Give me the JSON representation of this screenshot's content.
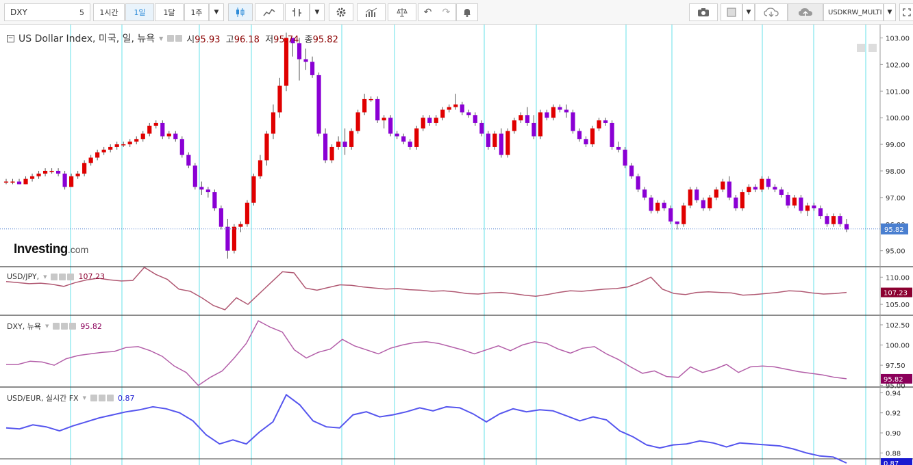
{
  "toolbar": {
    "symbol": "DXY",
    "interval_value": "5",
    "intervals": [
      "1시간",
      "1일",
      "1달",
      "1주"
    ],
    "active_interval": "1일",
    "compare_symbol": "USDKRW_MULTI",
    "icons": [
      "candle-icon",
      "area-icon",
      "indicator-icon",
      "gear-icon",
      "bar-chart-icon",
      "scale-icon",
      "undo-icon",
      "redo-icon",
      "alert-icon",
      "camera-icon",
      "square-icon",
      "cloud-download-icon",
      "cloud-upload-icon",
      "fullscreen-icon"
    ]
  },
  "main_pane": {
    "title": "US Dollar Index, 미국, 일, 뉴욕",
    "open_label": "시",
    "open": "95.93",
    "high_label": "고",
    "high": "96.18",
    "low_label": "저",
    "low": "95.74",
    "close_label": "종",
    "close": "95.82",
    "price_tag": "95.82",
    "y_ticks": [
      "103.00",
      "102.00",
      "101.00",
      "100.00",
      "99.00",
      "98.00",
      "97.00",
      "96.00",
      "95.00"
    ],
    "logo_main": "Investing",
    "logo_suffix": ".com"
  },
  "panes": [
    {
      "label": "USD/JPY,",
      "value": "107.23",
      "value_color": "#8b0030",
      "line_color": "#b05872",
      "y_ticks": [
        "110.00",
        "105.00"
      ],
      "tag": "107.23",
      "tag_color": "#8b0030"
    },
    {
      "label": "DXY, 뉴욕",
      "value": "95.82",
      "value_color": "#8b005a",
      "line_color": "#b35ea8",
      "y_ticks": [
        "102.50",
        "100.00",
        "97.50",
        "95.00"
      ],
      "tag": "95.82",
      "tag_color": "#8b005a"
    },
    {
      "label": "USD/EUR, 실시간 FX",
      "value": "0.87",
      "value_color": "#1a1ad0",
      "line_color": "#5555ee",
      "y_ticks": [
        "0.94",
        "0.92",
        "0.90",
        "0.88"
      ],
      "tag": "0.87",
      "tag_color": "#1a1ad0"
    }
  ],
  "chart_data": {
    "type": "candlestick",
    "series_name": "US Dollar Index",
    "ylim": [
      94.4,
      103.5
    ],
    "up_color": "#e00000",
    "down_color": "#8a00d4",
    "candles": [
      [
        97.6,
        97.7,
        97.5,
        97.6
      ],
      [
        97.6,
        97.7,
        97.5,
        97.6
      ],
      [
        97.6,
        97.7,
        97.5,
        97.5
      ],
      [
        97.5,
        97.8,
        97.5,
        97.7
      ],
      [
        97.7,
        97.9,
        97.6,
        97.8
      ],
      [
        97.8,
        98.0,
        97.7,
        97.9
      ],
      [
        97.9,
        98.1,
        97.8,
        98.0
      ],
      [
        98.0,
        98.1,
        97.9,
        98.0
      ],
      [
        98.0,
        98.1,
        97.8,
        97.9
      ],
      [
        97.9,
        98.0,
        97.3,
        97.4
      ],
      [
        97.4,
        97.9,
        97.4,
        97.8
      ],
      [
        97.8,
        98.0,
        97.7,
        97.9
      ],
      [
        97.9,
        98.4,
        97.8,
        98.3
      ],
      [
        98.3,
        98.6,
        98.2,
        98.5
      ],
      [
        98.5,
        98.8,
        98.4,
        98.7
      ],
      [
        98.7,
        98.9,
        98.6,
        98.8
      ],
      [
        98.8,
        99.0,
        98.7,
        98.9
      ],
      [
        98.9,
        99.1,
        98.8,
        99.0
      ],
      [
        99.0,
        99.1,
        98.9,
        99.0
      ],
      [
        99.0,
        99.2,
        98.9,
        99.1
      ],
      [
        99.1,
        99.3,
        99.0,
        99.2
      ],
      [
        99.2,
        99.5,
        99.1,
        99.4
      ],
      [
        99.4,
        99.8,
        99.3,
        99.7
      ],
      [
        99.7,
        99.9,
        99.6,
        99.8
      ],
      [
        99.8,
        99.9,
        99.2,
        99.3
      ],
      [
        99.3,
        99.5,
        99.2,
        99.4
      ],
      [
        99.4,
        99.5,
        99.1,
        99.2
      ],
      [
        99.2,
        99.3,
        98.5,
        98.6
      ],
      [
        98.6,
        98.7,
        98.1,
        98.2
      ],
      [
        98.2,
        98.3,
        97.3,
        97.4
      ],
      [
        97.4,
        97.6,
        97.1,
        97.3
      ],
      [
        97.3,
        97.4,
        97.0,
        97.2
      ],
      [
        97.2,
        97.3,
        96.5,
        96.6
      ],
      [
        96.6,
        96.7,
        95.8,
        95.9
      ],
      [
        95.9,
        96.2,
        94.7,
        95.0
      ],
      [
        95.0,
        96.0,
        94.9,
        95.9
      ],
      [
        95.9,
        96.1,
        95.7,
        96.0
      ],
      [
        96.0,
        96.9,
        95.9,
        96.8
      ],
      [
        96.8,
        97.9,
        96.7,
        97.8
      ],
      [
        97.8,
        98.6,
        97.7,
        98.4
      ],
      [
        98.4,
        99.5,
        98.2,
        99.4
      ],
      [
        99.4,
        100.5,
        99.2,
        100.2
      ],
      [
        100.2,
        101.5,
        100.0,
        101.2
      ],
      [
        101.2,
        103.2,
        101.0,
        103.0
      ],
      [
        103.0,
        103.0,
        102.3,
        102.8
      ],
      [
        102.8,
        103.0,
        101.4,
        102.2
      ],
      [
        102.2,
        102.6,
        101.8,
        102.1
      ],
      [
        102.1,
        102.3,
        101.5,
        101.6
      ],
      [
        101.6,
        101.7,
        99.3,
        99.4
      ],
      [
        99.4,
        99.6,
        98.3,
        98.4
      ],
      [
        98.4,
        99.0,
        98.3,
        98.9
      ],
      [
        98.9,
        99.3,
        98.8,
        99.1
      ],
      [
        99.1,
        99.6,
        98.6,
        98.9
      ],
      [
        98.9,
        99.6,
        98.8,
        99.5
      ],
      [
        99.5,
        100.3,
        99.4,
        100.2
      ],
      [
        100.2,
        100.9,
        100.1,
        100.7
      ],
      [
        100.7,
        100.8,
        100.6,
        100.7
      ],
      [
        100.7,
        100.8,
        99.8,
        99.9
      ],
      [
        99.9,
        100.1,
        99.6,
        100.0
      ],
      [
        100.0,
        100.1,
        99.3,
        99.4
      ],
      [
        99.4,
        99.5,
        99.2,
        99.3
      ],
      [
        99.3,
        99.4,
        99.0,
        99.1
      ],
      [
        99.1,
        99.2,
        98.8,
        98.9
      ],
      [
        98.9,
        99.7,
        98.8,
        99.6
      ],
      [
        99.6,
        100.1,
        99.5,
        100.0
      ],
      [
        100.0,
        100.1,
        99.7,
        99.8
      ],
      [
        99.8,
        100.1,
        99.7,
        100.0
      ],
      [
        100.0,
        100.4,
        99.9,
        100.3
      ],
      [
        100.3,
        100.5,
        100.2,
        100.4
      ],
      [
        100.4,
        100.9,
        100.3,
        100.5
      ],
      [
        100.5,
        100.6,
        100.1,
        100.2
      ],
      [
        100.2,
        100.3,
        100.0,
        100.1
      ],
      [
        100.1,
        100.2,
        99.7,
        99.8
      ],
      [
        99.8,
        99.9,
        99.3,
        99.4
      ],
      [
        99.4,
        99.5,
        98.8,
        98.9
      ],
      [
        98.9,
        99.5,
        98.8,
        99.4
      ],
      [
        99.4,
        99.6,
        98.5,
        98.6
      ],
      [
        98.6,
        99.6,
        98.5,
        99.5
      ],
      [
        99.5,
        100.0,
        99.4,
        99.9
      ],
      [
        99.9,
        100.2,
        99.8,
        100.1
      ],
      [
        100.1,
        100.4,
        99.7,
        99.8
      ],
      [
        99.8,
        100.1,
        99.2,
        99.3
      ],
      [
        99.3,
        100.3,
        99.2,
        100.2
      ],
      [
        100.2,
        100.3,
        99.9,
        100.0
      ],
      [
        100.0,
        100.5,
        99.9,
        100.4
      ],
      [
        100.4,
        100.5,
        100.2,
        100.3
      ],
      [
        100.3,
        100.5,
        100.0,
        100.2
      ],
      [
        100.2,
        100.3,
        99.4,
        99.5
      ],
      [
        99.5,
        99.6,
        99.1,
        99.2
      ],
      [
        99.2,
        99.3,
        98.9,
        99.0
      ],
      [
        99.0,
        99.7,
        98.9,
        99.6
      ],
      [
        99.6,
        100.0,
        99.5,
        99.9
      ],
      [
        99.9,
        100.0,
        99.7,
        99.8
      ],
      [
        99.8,
        99.9,
        98.8,
        98.9
      ],
      [
        98.9,
        99.1,
        98.7,
        98.8
      ],
      [
        98.8,
        98.9,
        98.1,
        98.2
      ],
      [
        98.2,
        98.3,
        97.7,
        97.8
      ],
      [
        97.8,
        97.9,
        97.2,
        97.3
      ],
      [
        97.3,
        97.4,
        96.9,
        97.0
      ],
      [
        97.0,
        97.1,
        96.4,
        96.5
      ],
      [
        96.5,
        96.9,
        96.4,
        96.8
      ],
      [
        96.8,
        96.9,
        96.5,
        96.6
      ],
      [
        96.6,
        96.7,
        96.0,
        96.1
      ],
      [
        96.1,
        96.1,
        95.8,
        96.0
      ],
      [
        96.0,
        96.8,
        95.9,
        96.7
      ],
      [
        96.7,
        97.4,
        96.6,
        97.3
      ],
      [
        97.3,
        97.4,
        96.8,
        96.9
      ],
      [
        96.9,
        97.0,
        96.5,
        96.6
      ],
      [
        96.6,
        97.1,
        96.5,
        97.0
      ],
      [
        97.0,
        97.4,
        96.9,
        97.3
      ],
      [
        97.3,
        97.7,
        97.2,
        97.6
      ],
      [
        97.6,
        97.8,
        96.9,
        97.0
      ],
      [
        97.0,
        97.1,
        96.5,
        96.6
      ],
      [
        96.6,
        97.3,
        96.5,
        97.2
      ],
      [
        97.2,
        97.5,
        97.1,
        97.4
      ],
      [
        97.4,
        97.5,
        97.2,
        97.3
      ],
      [
        97.3,
        97.8,
        97.2,
        97.7
      ],
      [
        97.7,
        97.8,
        97.3,
        97.4
      ],
      [
        97.4,
        97.5,
        97.2,
        97.3
      ],
      [
        97.3,
        97.4,
        97.0,
        97.1
      ],
      [
        97.1,
        97.2,
        96.6,
        96.7
      ],
      [
        96.7,
        97.1,
        96.6,
        97.0
      ],
      [
        97.0,
        97.1,
        96.4,
        96.5
      ],
      [
        96.5,
        96.8,
        96.3,
        96.7
      ],
      [
        96.7,
        96.8,
        96.5,
        96.6
      ],
      [
        96.6,
        96.7,
        96.2,
        96.3
      ],
      [
        96.3,
        96.4,
        95.9,
        96.0
      ],
      [
        96.0,
        96.4,
        95.9,
        96.3
      ],
      [
        96.3,
        96.4,
        95.9,
        96.0
      ],
      [
        96.0,
        96.2,
        95.7,
        95.8
      ]
    ],
    "usdjpy": [
      109.2,
      109.0,
      108.8,
      108.9,
      108.7,
      108.3,
      109.0,
      109.5,
      109.8,
      109.5,
      109.3,
      109.4,
      111.8,
      110.5,
      109.6,
      107.8,
      107.4,
      106.2,
      104.8,
      104.0,
      106.2,
      105.0,
      107.0,
      109.0,
      111.0,
      110.8,
      108.0,
      107.6,
      108.1,
      108.6,
      108.5,
      108.2,
      108.0,
      107.8,
      107.9,
      107.7,
      107.6,
      107.4,
      107.5,
      107.3,
      107.0,
      106.9,
      107.1,
      107.2,
      107.0,
      106.7,
      106.5,
      106.8,
      107.2,
      107.5,
      107.4,
      107.6,
      107.8,
      107.9,
      108.2,
      109.0,
      110.0,
      107.8,
      107.0,
      106.8,
      107.2,
      107.3,
      107.2,
      107.1,
      106.7,
      106.8,
      107.0,
      107.2,
      107.5,
      107.4,
      107.1,
      106.9,
      107.0,
      107.2
    ],
    "dxy": [
      97.6,
      97.6,
      98.0,
      97.9,
      97.5,
      98.3,
      98.7,
      98.9,
      99.1,
      99.2,
      99.7,
      99.8,
      99.3,
      98.6,
      97.4,
      96.6,
      95.0,
      96.0,
      96.8,
      98.4,
      100.2,
      103.0,
      102.2,
      101.6,
      99.4,
      98.4,
      99.1,
      99.5,
      100.7,
      99.9,
      99.4,
      98.9,
      99.6,
      100.0,
      100.3,
      100.4,
      100.2,
      99.8,
      99.4,
      98.9,
      99.4,
      99.9,
      99.3,
      100.0,
      100.4,
      100.2,
      99.5,
      99.0,
      99.6,
      99.8,
      98.9,
      98.2,
      97.3,
      96.5,
      96.8,
      96.1,
      96.0,
      97.3,
      96.6,
      97.0,
      97.6,
      96.6,
      97.3,
      97.4,
      97.3,
      97.0,
      96.7,
      96.5,
      96.3,
      96.0,
      95.82
    ],
    "usdeur": [
      0.905,
      0.904,
      0.908,
      0.906,
      0.902,
      0.907,
      0.911,
      0.915,
      0.918,
      0.921,
      0.923,
      0.926,
      0.924,
      0.92,
      0.912,
      0.898,
      0.889,
      0.893,
      0.889,
      0.901,
      0.911,
      0.938,
      0.928,
      0.912,
      0.906,
      0.905,
      0.918,
      0.921,
      0.916,
      0.918,
      0.921,
      0.925,
      0.922,
      0.926,
      0.925,
      0.919,
      0.911,
      0.919,
      0.924,
      0.921,
      0.923,
      0.922,
      0.917,
      0.912,
      0.916,
      0.913,
      0.902,
      0.896,
      0.888,
      0.885,
      0.888,
      0.889,
      0.892,
      0.89,
      0.886,
      0.89,
      0.889,
      0.888,
      0.887,
      0.884,
      0.88,
      0.877,
      0.876,
      0.87
    ]
  }
}
